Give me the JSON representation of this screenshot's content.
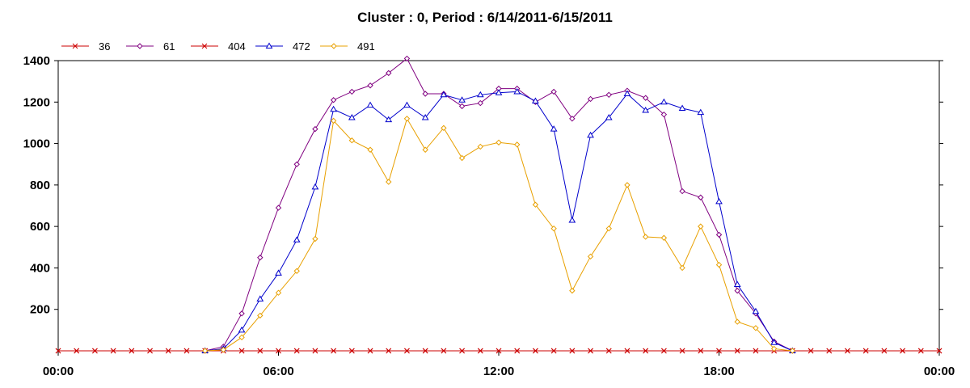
{
  "chart_data": {
    "type": "line",
    "title": "Cluster : 0, Period : 6/14/2011-6/15/2011",
    "xlabel": "",
    "ylabel": "",
    "ylim": [
      0,
      1400
    ],
    "y_ticks": [
      "200",
      "400",
      "600",
      "800",
      "1000",
      "1200",
      "1400"
    ],
    "x_ticks": [
      "00:00",
      "06:00",
      "12:00",
      "18:00",
      "00:00"
    ],
    "x_range_hours": [
      0,
      24
    ],
    "grid": true,
    "legend_position": "top-left",
    "x": [
      "00:00",
      "00:30",
      "01:00",
      "01:30",
      "02:00",
      "02:30",
      "03:00",
      "03:30",
      "04:00",
      "04:30",
      "05:00",
      "05:30",
      "06:00",
      "06:30",
      "07:00",
      "07:30",
      "08:00",
      "08:30",
      "09:00",
      "09:30",
      "10:00",
      "10:30",
      "11:00",
      "11:30",
      "12:00",
      "12:30",
      "13:00",
      "13:30",
      "14:00",
      "14:30",
      "15:00",
      "15:30",
      "16:00",
      "16:30",
      "17:00",
      "17:30",
      "18:00",
      "18:30",
      "19:00",
      "19:30",
      "20:00",
      "20:30",
      "21:00",
      "21:30",
      "22:00",
      "22:30",
      "23:00",
      "23:30",
      "24:00"
    ],
    "series": [
      {
        "name": "36",
        "color": "#cc0000",
        "marker": "x",
        "values": [
          0,
          0,
          0,
          0,
          0,
          0,
          0,
          0,
          0,
          0,
          0,
          0,
          0,
          0,
          0,
          0,
          0,
          0,
          0,
          0,
          0,
          0,
          0,
          0,
          0,
          0,
          0,
          0,
          0,
          0,
          0,
          0,
          0,
          0,
          0,
          0,
          0,
          0,
          0,
          0,
          0,
          0,
          0,
          0,
          0,
          0,
          0,
          0,
          0
        ]
      },
      {
        "name": "61",
        "color": "#800080",
        "marker": "diamond",
        "values": [
          null,
          null,
          null,
          null,
          null,
          null,
          null,
          null,
          0,
          20,
          180,
          450,
          690,
          900,
          1070,
          1210,
          1250,
          1280,
          1340,
          1410,
          1240,
          1240,
          1180,
          1195,
          1265,
          1265,
          1200,
          1250,
          1120,
          1215,
          1235,
          1255,
          1220,
          1140,
          770,
          740,
          560,
          290,
          180,
          45,
          0,
          null,
          null,
          null,
          null,
          null,
          null,
          null,
          null
        ]
      },
      {
        "name": "404",
        "color": "#cc0000",
        "marker": "x",
        "values": [
          0,
          0,
          0,
          0,
          0,
          0,
          0,
          0,
          0,
          0,
          0,
          0,
          0,
          0,
          0,
          0,
          0,
          0,
          0,
          0,
          0,
          0,
          0,
          0,
          0,
          0,
          0,
          0,
          0,
          0,
          0,
          0,
          0,
          0,
          0,
          0,
          0,
          0,
          0,
          0,
          0,
          0,
          0,
          0,
          0,
          0,
          0,
          0,
          0
        ]
      },
      {
        "name": "472",
        "color": "#0000cc",
        "marker": "triangle",
        "values": [
          null,
          null,
          null,
          null,
          null,
          null,
          null,
          null,
          0,
          10,
          100,
          250,
          375,
          535,
          790,
          1165,
          1125,
          1185,
          1115,
          1185,
          1125,
          1235,
          1210,
          1235,
          1245,
          1250,
          1205,
          1070,
          630,
          1040,
          1125,
          1240,
          1160,
          1200,
          1170,
          1150,
          720,
          320,
          190,
          40,
          0,
          null,
          null,
          null,
          null,
          null,
          null,
          null,
          null
        ]
      },
      {
        "name": "491",
        "color": "#e8a000",
        "marker": "diamond",
        "values": [
          null,
          null,
          null,
          null,
          null,
          null,
          null,
          null,
          0,
          5,
          65,
          170,
          280,
          385,
          540,
          1110,
          1015,
          970,
          815,
          1120,
          970,
          1075,
          930,
          985,
          1005,
          995,
          705,
          590,
          290,
          455,
          590,
          800,
          550,
          545,
          400,
          600,
          415,
          140,
          110,
          10,
          0,
          null,
          null,
          null,
          null,
          null,
          null,
          null,
          null
        ]
      }
    ]
  }
}
